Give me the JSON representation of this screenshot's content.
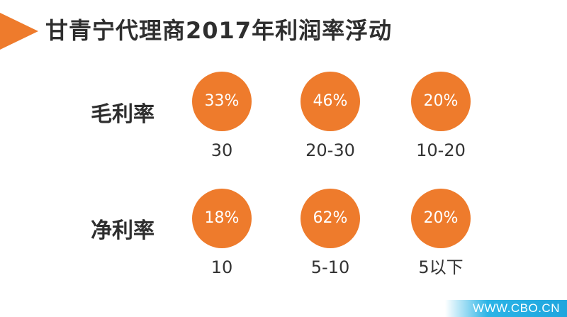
{
  "title": "甘青宁代理商2017年利润率浮动",
  "colors": {
    "accent": "#ee7b2c",
    "text": "#2e2e2e",
    "watermark_band": "#1ea5de"
  },
  "rows": [
    {
      "label": "毛利率",
      "items": [
        {
          "percent": "33%",
          "range": "30"
        },
        {
          "percent": "46%",
          "range": "20-30"
        },
        {
          "percent": "20%",
          "range": "10-20"
        }
      ]
    },
    {
      "label": "净利率",
      "items": [
        {
          "percent": "18%",
          "range": "10"
        },
        {
          "percent": "62%",
          "range": "5-10"
        },
        {
          "percent": "20%",
          "range": "5以下"
        }
      ]
    }
  ],
  "watermark": "WWW.CBO.CN"
}
